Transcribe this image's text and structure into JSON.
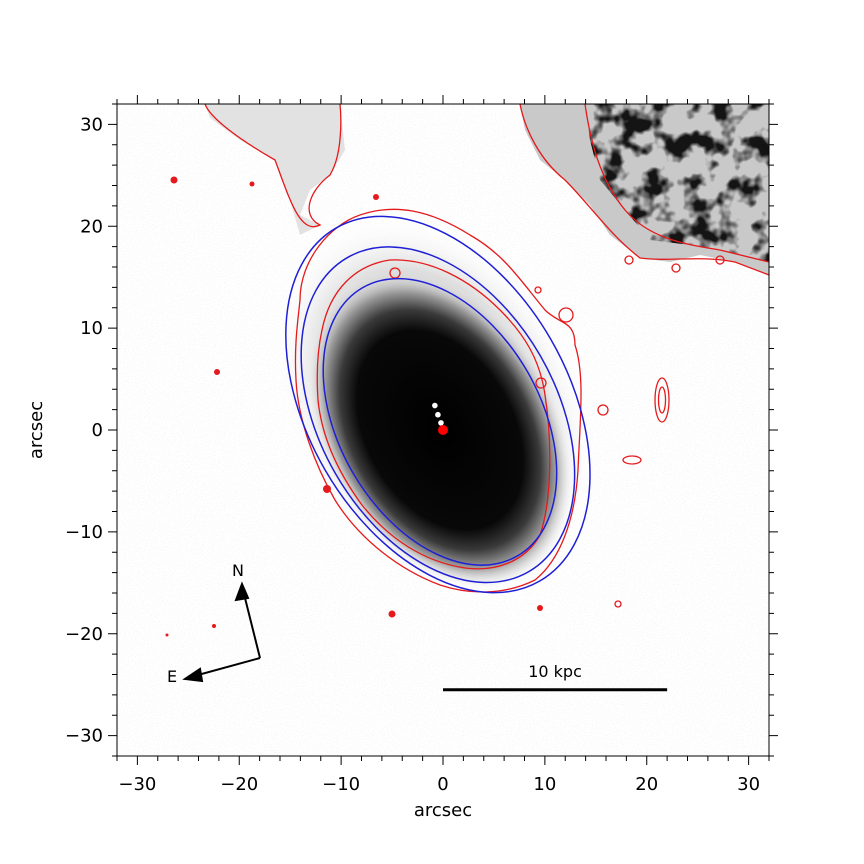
{
  "figure": {
    "xlabel": "arcsec",
    "ylabel": "arcsec",
    "xlim": [
      -32,
      32
    ],
    "ylim": [
      -32,
      32
    ],
    "x_ticks": [
      {
        "value": -30,
        "label": "−30"
      },
      {
        "value": -20,
        "label": "−20"
      },
      {
        "value": -10,
        "label": "−10"
      },
      {
        "value": 0,
        "label": "0"
      },
      {
        "value": 10,
        "label": "10"
      },
      {
        "value": 20,
        "label": "20"
      },
      {
        "value": 30,
        "label": "30"
      }
    ],
    "y_ticks": [
      {
        "value": 30,
        "label": "30"
      },
      {
        "value": 20,
        "label": "20"
      },
      {
        "value": 10,
        "label": "10"
      },
      {
        "value": 0,
        "label": "0"
      },
      {
        "value": -10,
        "label": "−10"
      },
      {
        "value": -20,
        "label": "−20"
      },
      {
        "value": -30,
        "label": "−30"
      }
    ],
    "compass": {
      "north_label": "N",
      "east_label": "E"
    },
    "scale_bar": {
      "label": "10 kpc",
      "x_start": 0,
      "x_end": 22,
      "y": -25.5
    },
    "colors": {
      "contour": "#e41a1c",
      "ellipse": "#1f1fd6",
      "center_marker": "#ff0000",
      "offset_markers": "#ffffff",
      "image_core": "#000000"
    },
    "ellipses": [
      {
        "x0": -0.5,
        "y0": 2.5,
        "a": 20.0,
        "b": 12.8,
        "pa_deg": 30
      },
      {
        "x0": -0.5,
        "y0": 1.5,
        "a": 17.8,
        "b": 11.6,
        "pa_deg": 30
      },
      {
        "x0": -0.3,
        "y0": 0.8,
        "a": 15.2,
        "b": 9.9,
        "pa_deg": 30
      }
    ],
    "center_marker": {
      "x": 0,
      "y": 0
    },
    "offset_markers": [
      {
        "x": -0.8,
        "y": 2.4
      },
      {
        "x": -0.5,
        "y": 1.5
      },
      {
        "x": -0.2,
        "y": 0.7
      }
    ]
  }
}
